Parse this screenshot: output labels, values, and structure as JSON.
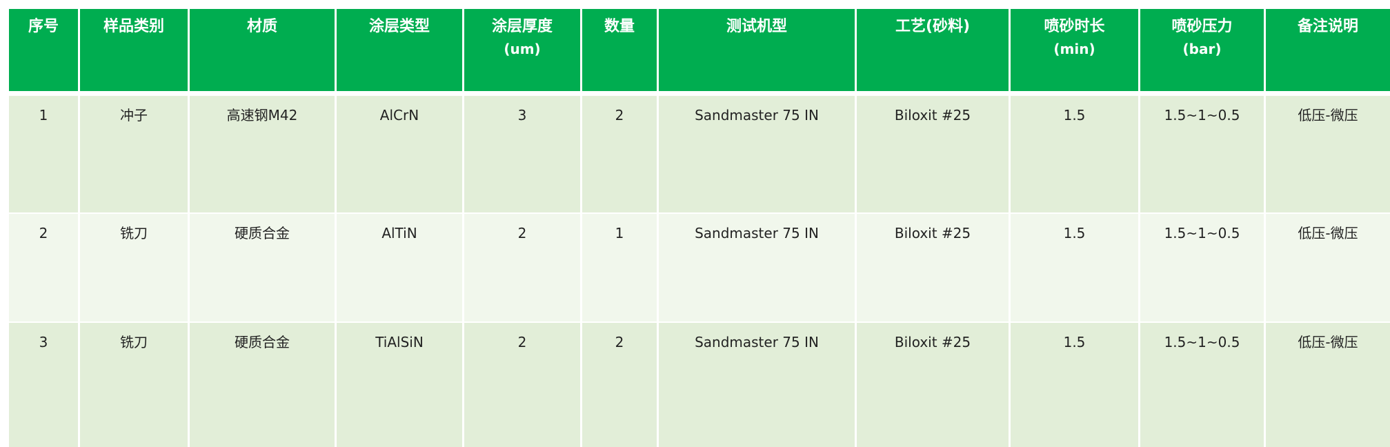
{
  "headers": [
    {
      "label": "序号",
      "unit": ""
    },
    {
      "label": "样品类别",
      "unit": ""
    },
    {
      "label": "材质",
      "unit": ""
    },
    {
      "label": "涂层类型",
      "unit": ""
    },
    {
      "label": "涂层厚度",
      "unit": "(um)"
    },
    {
      "label": "数量",
      "unit": ""
    },
    {
      "label": "测试机型",
      "unit": ""
    },
    {
      "label": "工艺(砂料)",
      "unit": ""
    },
    {
      "label": "喷砂时长",
      "unit": "(min)"
    },
    {
      "label": "喷砂压力",
      "unit": "(bar)"
    },
    {
      "label": "备注说明",
      "unit": ""
    }
  ],
  "rows": [
    [
      "1",
      "冲子",
      "高速钢M42",
      "AlCrN",
      "3",
      "2",
      "Sandmaster 75 IN",
      "Biloxit #25",
      "1.5",
      "1.5~1~0.5",
      "低压-微压"
    ],
    [
      "2",
      "铣刀",
      "硬质合金",
      "AlTiN",
      "2",
      "1",
      "Sandmaster 75 IN",
      "Biloxit #25",
      "1.5",
      "1.5~1~0.5",
      "低压-微压"
    ],
    [
      "3",
      "铣刀",
      "硬质合金",
      "TiAlSiN",
      "2",
      "2",
      "Sandmaster 75 IN",
      "Biloxit #25",
      "1.5",
      "1.5~1~0.5",
      "低压-微压"
    ]
  ],
  "colors": {
    "header_bg": "#00ad50",
    "row_odd": "#e2eed8",
    "row_even": "#f1f7ec"
  }
}
